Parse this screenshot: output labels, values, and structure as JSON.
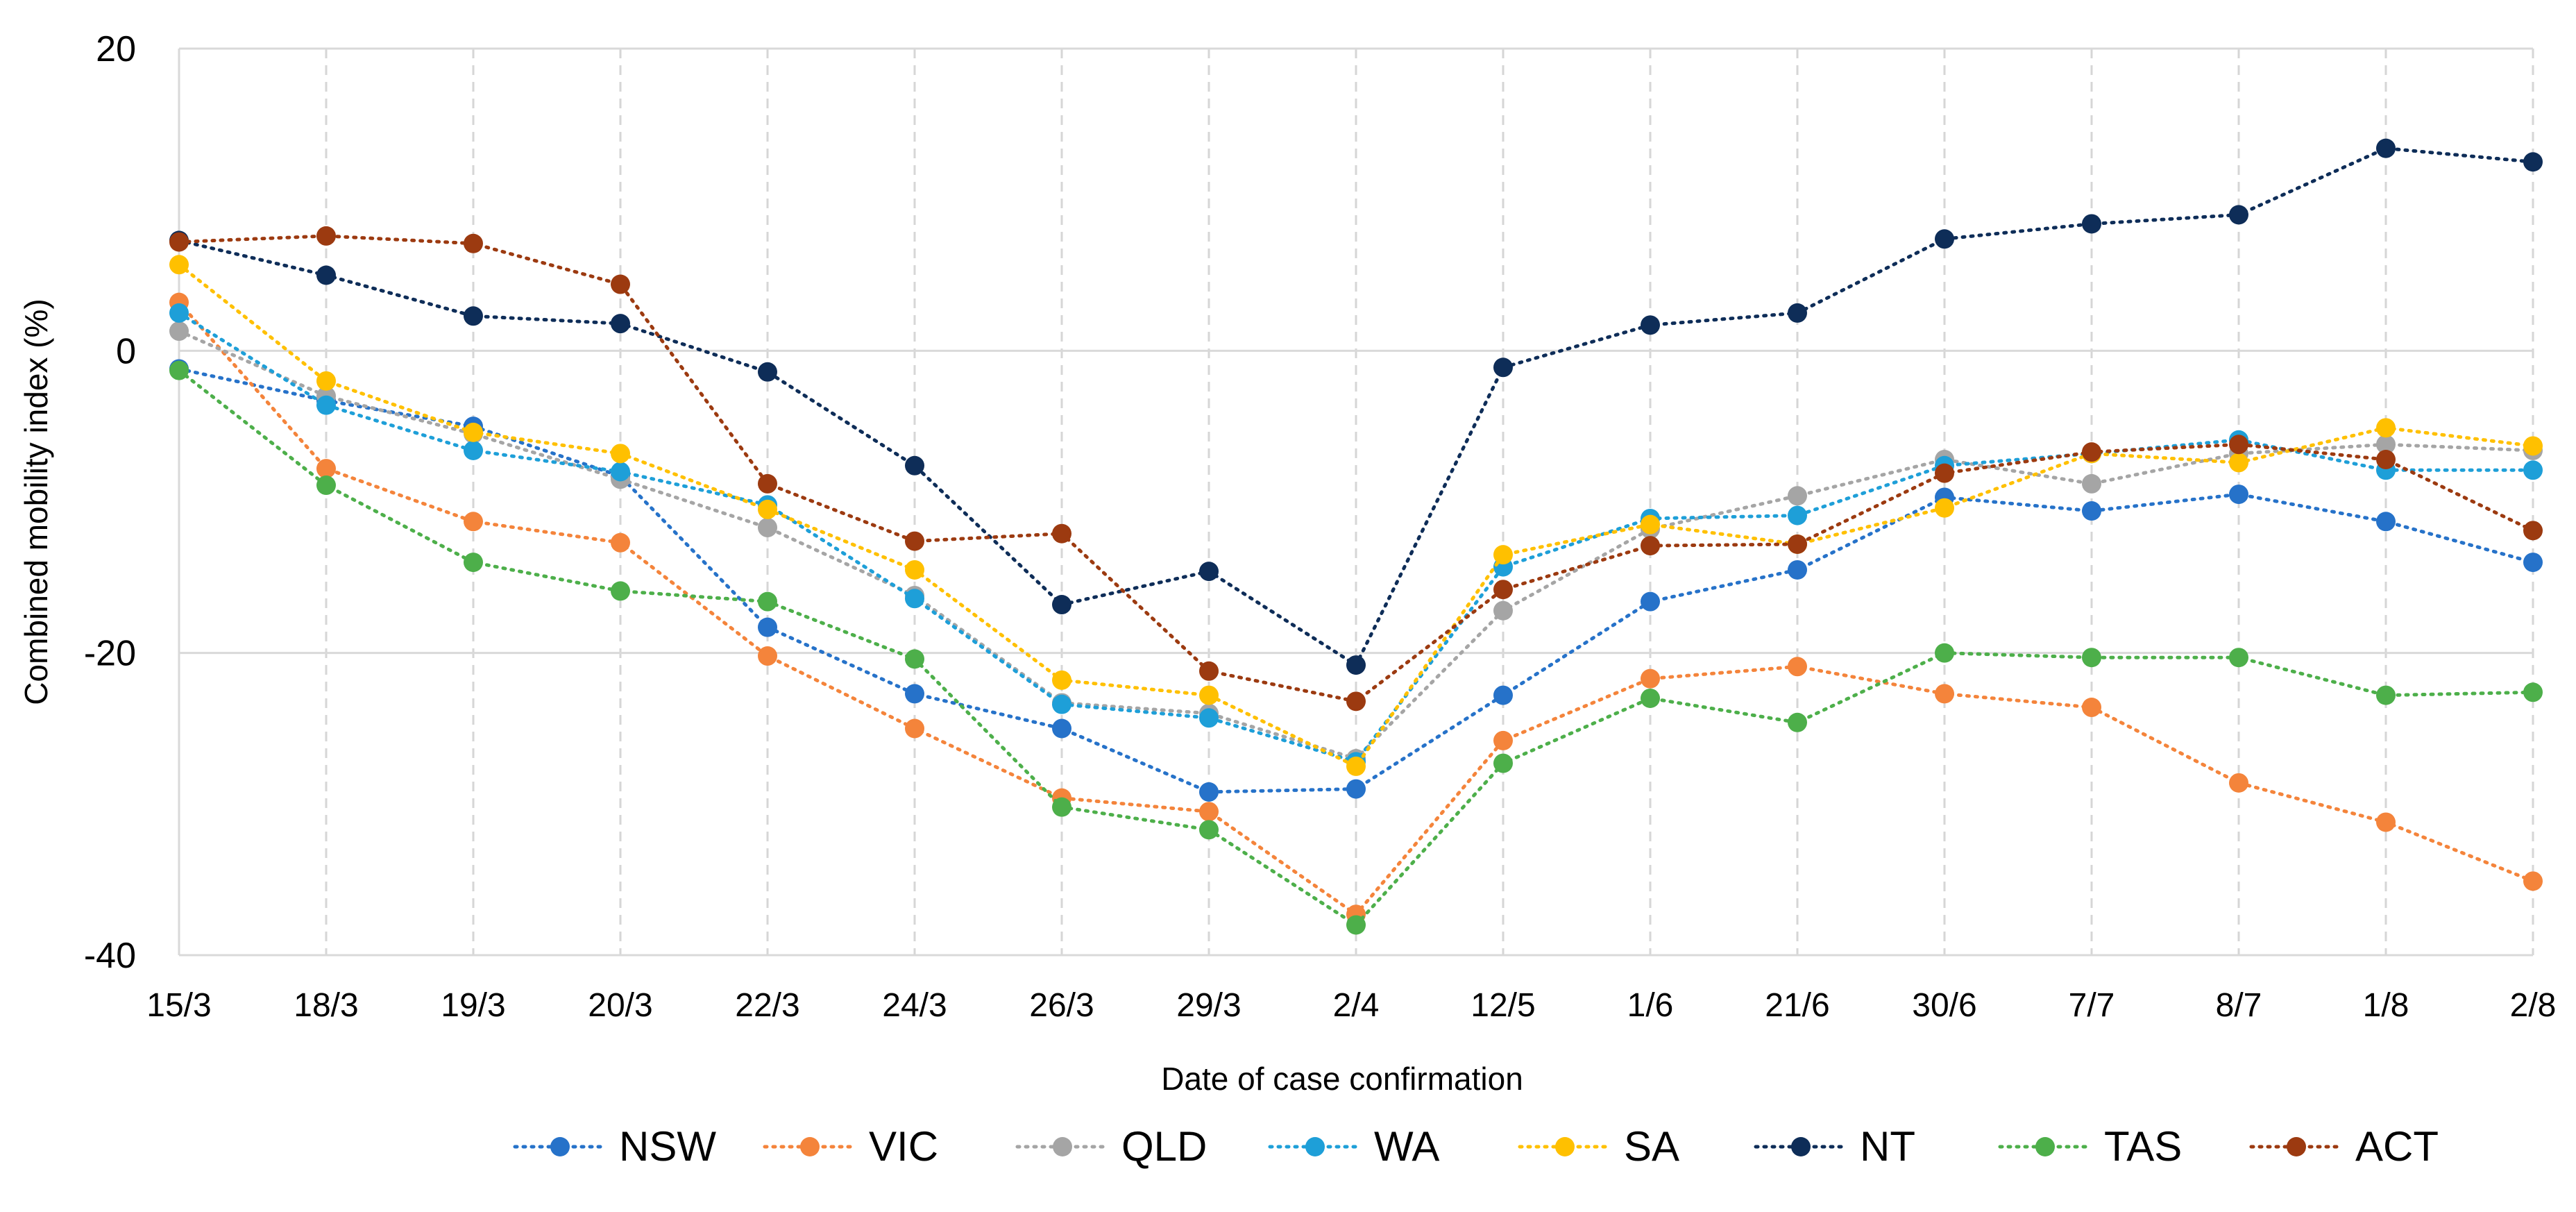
{
  "chart_data": {
    "type": "line",
    "title": "",
    "xlabel": "Date of case confirmation",
    "ylabel": "Combined mobility index (%)",
    "ylim": [
      -40,
      20
    ],
    "yticks": [
      20,
      0,
      -20,
      -40
    ],
    "grid": "dashed vertical lines at categories; solid horizontal lines at y ticks",
    "legend_position": "bottom",
    "categories": [
      "15/3",
      "18/3",
      "19/3",
      "20/3",
      "22/3",
      "24/3",
      "26/3",
      "29/3",
      "2/4",
      "12/5",
      "1/6",
      "21/6",
      "30/6",
      "7/7",
      "8/7",
      "1/8",
      "2/8"
    ],
    "series": [
      {
        "name": "NSW",
        "color": "#2672C9",
        "values": [
          -1.2,
          -3.3,
          -5.0,
          -8.3,
          -18.3,
          -22.7,
          -25.0,
          -29.2,
          -29.0,
          -22.8,
          -16.6,
          -14.5,
          -9.7,
          -10.6,
          -9.5,
          -11.3,
          -14.0
        ]
      },
      {
        "name": "VIC",
        "color": "#F4843B",
        "values": [
          3.2,
          -7.8,
          -11.3,
          -12.7,
          -20.2,
          -25.0,
          -29.6,
          -30.5,
          -37.3,
          -25.8,
          -21.7,
          -20.9,
          -22.7,
          -23.6,
          -28.6,
          -31.2,
          -35.1
        ]
      },
      {
        "name": "QLD",
        "color": "#A5A5A5",
        "values": [
          1.3,
          -3.0,
          -5.5,
          -8.5,
          -11.7,
          -16.2,
          -23.3,
          -24.0,
          -27.0,
          -17.2,
          -11.8,
          -9.6,
          -7.2,
          -8.8,
          -6.8,
          -6.2,
          -6.6
        ]
      },
      {
        "name": "WA",
        "color": "#1E9FD8",
        "values": [
          2.5,
          -3.6,
          -6.6,
          -8.0,
          -10.2,
          -16.4,
          -23.4,
          -24.3,
          -27.2,
          -14.3,
          -11.1,
          -10.9,
          -7.6,
          -6.8,
          -5.9,
          -7.9,
          -7.9
        ]
      },
      {
        "name": "SA",
        "color": "#FFC000",
        "values": [
          5.7,
          -2.0,
          -5.4,
          -6.8,
          -10.5,
          -14.5,
          -21.8,
          -22.8,
          -27.5,
          -13.5,
          -11.5,
          -12.8,
          -10.4,
          -6.8,
          -7.4,
          -5.1,
          -6.3
        ]
      },
      {
        "name": "NT",
        "color": "#0E2D58",
        "values": [
          7.3,
          5.0,
          2.3,
          1.8,
          -1.4,
          -7.6,
          -16.8,
          -14.6,
          -20.8,
          -1.1,
          1.7,
          2.5,
          7.4,
          8.4,
          9.0,
          13.4,
          12.5
        ]
      },
      {
        "name": "TAS",
        "color": "#4DAF4A",
        "values": [
          -1.3,
          -8.9,
          -14.0,
          -15.9,
          -16.6,
          -20.4,
          -30.2,
          -31.7,
          -38.0,
          -27.3,
          -23.0,
          -24.6,
          -20.0,
          -20.3,
          -20.3,
          -22.8,
          -22.6
        ]
      },
      {
        "name": "ACT",
        "color": "#9C3A10",
        "values": [
          7.2,
          7.6,
          7.1,
          4.4,
          -8.8,
          -12.6,
          -12.1,
          -21.2,
          -23.2,
          -15.8,
          -12.9,
          -12.8,
          -8.1,
          -6.7,
          -6.2,
          -7.2,
          -11.9
        ]
      }
    ]
  }
}
